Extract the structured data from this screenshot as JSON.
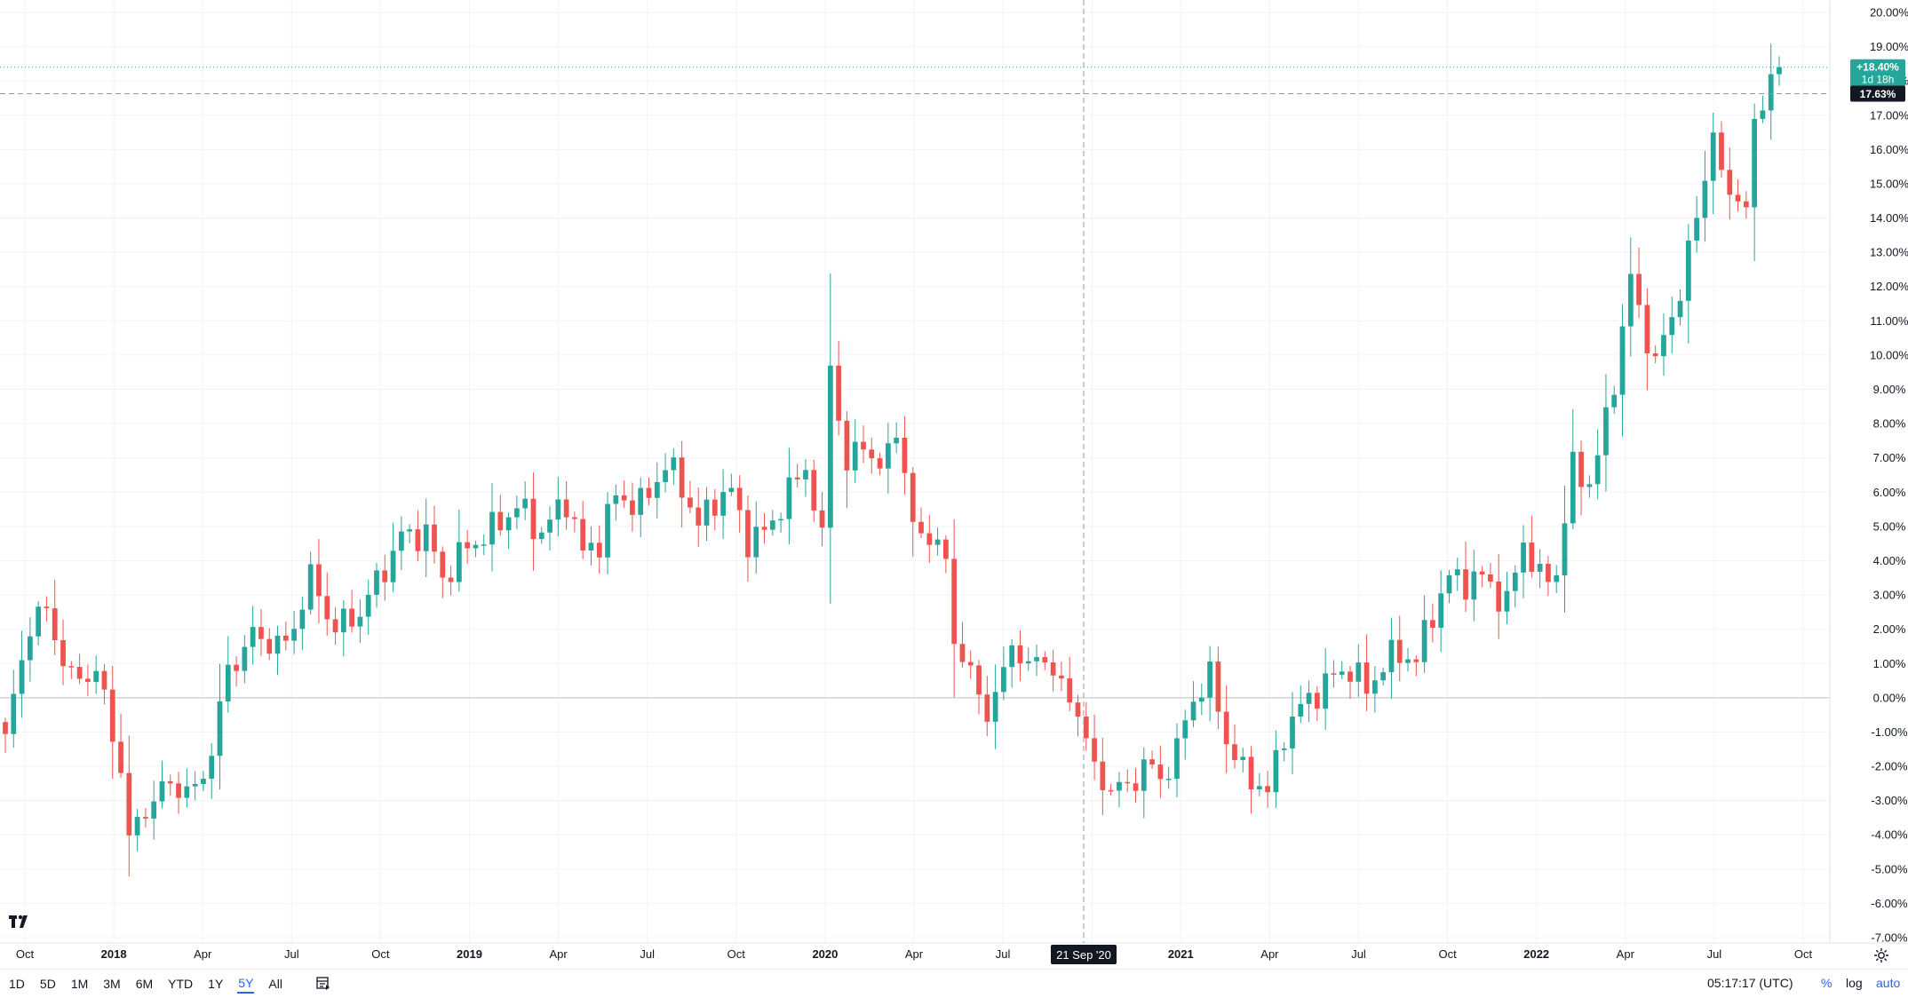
{
  "chart_data": {
    "type": "candlestick",
    "title": "",
    "xlabel": "",
    "ylabel": "",
    "ylim": [
      -7,
      20
    ],
    "y_ticks": [
      "20.00%",
      "19.00%",
      "18.00%",
      "17.00%",
      "16.00%",
      "15.00%",
      "14.00%",
      "13.00%",
      "12.00%",
      "11.00%",
      "10.00%",
      "9.00%",
      "8.00%",
      "7.00%",
      "6.00%",
      "5.00%",
      "4.00%",
      "3.00%",
      "2.00%",
      "1.00%",
      "0.00%",
      "-1.00%",
      "-2.00%",
      "-3.00%",
      "-4.00%",
      "-5.00%",
      "-6.00%",
      "-7.00%"
    ],
    "x_ticks": [
      {
        "label": "Oct",
        "bold": false
      },
      {
        "label": "2018",
        "bold": true
      },
      {
        "label": "Apr",
        "bold": false
      },
      {
        "label": "Jul",
        "bold": false
      },
      {
        "label": "Oct",
        "bold": false
      },
      {
        "label": "2019",
        "bold": true
      },
      {
        "label": "Apr",
        "bold": false
      },
      {
        "label": "Jul",
        "bold": false
      },
      {
        "label": "Oct",
        "bold": false
      },
      {
        "label": "2020",
        "bold": true
      },
      {
        "label": "Apr",
        "bold": false
      },
      {
        "label": "Jul",
        "bold": false
      },
      {
        "label": "Oct",
        "bold": false
      },
      {
        "label": "2021",
        "bold": true
      },
      {
        "label": "Apr",
        "bold": false
      },
      {
        "label": "Jul",
        "bold": false
      },
      {
        "label": "Oct",
        "bold": false
      },
      {
        "label": "2022",
        "bold": true
      },
      {
        "label": "Apr",
        "bold": false
      },
      {
        "label": "Jul",
        "bold": false
      },
      {
        "label": "Oct",
        "bold": false
      }
    ],
    "anchors": [
      [
        0,
        -1.2
      ],
      [
        3,
        2.2
      ],
      [
        5,
        2.5
      ],
      [
        8,
        0.5
      ],
      [
        11,
        0.8
      ],
      [
        14,
        -2.0
      ],
      [
        15,
        -4.2
      ],
      [
        17,
        -3.2
      ],
      [
        20,
        -2.5
      ],
      [
        23,
        -2.8
      ],
      [
        25,
        -1.5
      ],
      [
        27,
        0.8
      ],
      [
        30,
        1.8
      ],
      [
        34,
        1.5
      ],
      [
        37,
        3.5
      ],
      [
        40,
        2.0
      ],
      [
        43,
        2.5
      ],
      [
        46,
        3.8
      ],
      [
        48,
        4.7
      ],
      [
        51,
        4.8
      ],
      [
        53,
        3.5
      ],
      [
        56,
        4.4
      ],
      [
        59,
        4.9
      ],
      [
        62,
        5.6
      ],
      [
        65,
        4.8
      ],
      [
        68,
        5.8
      ],
      [
        70,
        4.2
      ],
      [
        72,
        4.6
      ],
      [
        74,
        5.9
      ],
      [
        77,
        5.6
      ],
      [
        80,
        6.8
      ],
      [
        82,
        6.2
      ],
      [
        84,
        5.0
      ],
      [
        86,
        5.8
      ],
      [
        88,
        6.0
      ],
      [
        90,
        4.6
      ],
      [
        92,
        4.8
      ],
      [
        94,
        5.6
      ],
      [
        97,
        6.8
      ],
      [
        99,
        4.5
      ],
      [
        100,
        9.9
      ],
      [
        102,
        6.6
      ],
      [
        104,
        7.6
      ],
      [
        106,
        6.5
      ],
      [
        108,
        8.0
      ],
      [
        110,
        4.9
      ],
      [
        112,
        4.8
      ],
      [
        114,
        3.9
      ],
      [
        115,
        1.8
      ],
      [
        117,
        0.6
      ],
      [
        119,
        -0.4
      ],
      [
        121,
        0.6
      ],
      [
        122,
        1.7
      ],
      [
        124,
        0.8
      ],
      [
        126,
        1.3
      ],
      [
        128,
        0.2
      ],
      [
        130,
        -0.3
      ],
      [
        132,
        -2.2
      ],
      [
        134,
        -2.6
      ],
      [
        136,
        -2.7
      ],
      [
        138,
        -1.9
      ],
      [
        140,
        -2.4
      ],
      [
        142,
        -1.5
      ],
      [
        144,
        0.0
      ],
      [
        146,
        0.6
      ],
      [
        148,
        -1.2
      ],
      [
        150,
        -2.2
      ],
      [
        152,
        -2.5
      ],
      [
        153,
        -2.8
      ],
      [
        155,
        -1.0
      ],
      [
        157,
        -0.3
      ],
      [
        159,
        0.2
      ],
      [
        161,
        0.6
      ],
      [
        163,
        0.9
      ],
      [
        165,
        0.2
      ],
      [
        167,
        1.0
      ],
      [
        169,
        1.3
      ],
      [
        171,
        1.1
      ],
      [
        173,
        2.5
      ],
      [
        175,
        3.5
      ],
      [
        177,
        3.4
      ],
      [
        179,
        3.5
      ],
      [
        180,
        3.3
      ],
      [
        182,
        2.7
      ],
      [
        184,
        4.6
      ],
      [
        186,
        3.4
      ],
      [
        188,
        3.7
      ],
      [
        190,
        6.7
      ],
      [
        192,
        6.3
      ],
      [
        193,
        7.0
      ],
      [
        195,
        9.3
      ],
      [
        197,
        12.2
      ],
      [
        199,
        10.5
      ],
      [
        200,
        9.7
      ],
      [
        202,
        11.2
      ],
      [
        203,
        11.9
      ],
      [
        205,
        14.0
      ],
      [
        207,
        16.6
      ],
      [
        208,
        15.0
      ],
      [
        210,
        14.7
      ],
      [
        211,
        14.2
      ],
      [
        212,
        16.6
      ],
      [
        214,
        18.3
      ],
      [
        215,
        18.4
      ]
    ],
    "candle_count": 216,
    "current_label": "+18.40%",
    "countdown_label": "1d 18h",
    "crosshair_y_label": "17.63%",
    "crosshair_x_label": "21 Sep '20",
    "zero_line": 0,
    "colors": {
      "up": "#26a69a",
      "down": "#ef5350",
      "grid": "#f0f3fa",
      "crosshair": "#9598a1",
      "axis_bg": "#ffffff"
    }
  },
  "toolbar": {
    "timeframes": [
      {
        "label": "1D",
        "active": false
      },
      {
        "label": "5D",
        "active": false
      },
      {
        "label": "1M",
        "active": false
      },
      {
        "label": "3M",
        "active": false
      },
      {
        "label": "6M",
        "active": false
      },
      {
        "label": "YTD",
        "active": false
      },
      {
        "label": "1Y",
        "active": false
      },
      {
        "label": "5Y",
        "active": true
      },
      {
        "label": "All",
        "active": false
      }
    ],
    "clock": "05:17:17 (UTC)",
    "percent_label": "%",
    "log_label": "log",
    "auto_label": "auto"
  }
}
